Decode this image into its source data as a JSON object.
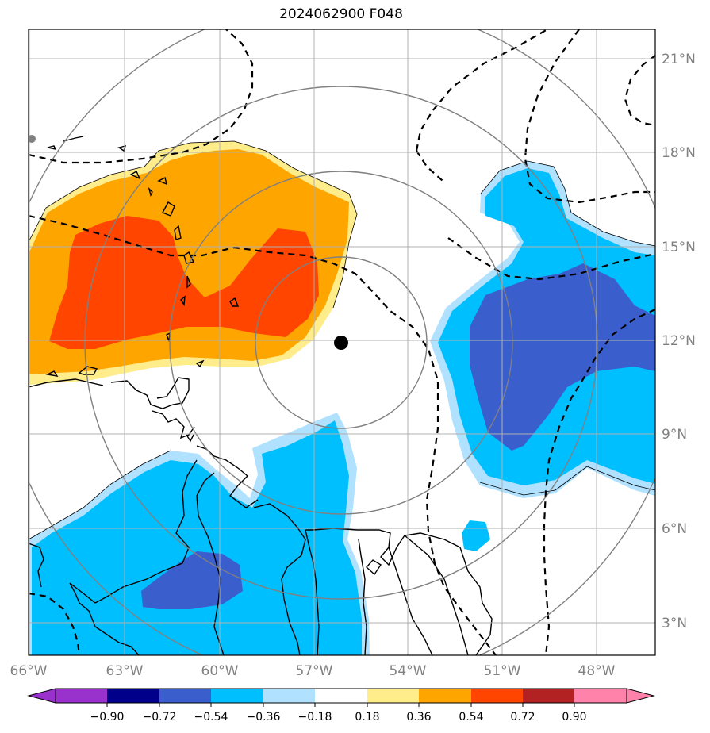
{
  "title": "2024062900 F048",
  "map": {
    "lon_range": [
      -66,
      -46.5
    ],
    "lat_range": [
      2,
      22
    ],
    "storm_center": {
      "lon": -56.0,
      "lat": 12.0
    },
    "range_ring_color": "#808080",
    "dashed_contour_color": "#000000",
    "grid": true
  },
  "axes": {
    "lon_ticks": [
      "66°W",
      "63°W",
      "60°W",
      "57°W",
      "54°W",
      "51°W",
      "48°W"
    ],
    "lat_ticks": [
      "3°N",
      "6°N",
      "9°N",
      "12°N",
      "15°N",
      "18°N",
      "21°N"
    ],
    "tick_color": "#808080"
  },
  "colorbar": {
    "tick_labels": [
      "−0.90",
      "−0.72",
      "−0.54",
      "−0.36",
      "−0.18",
      "0.18",
      "0.36",
      "0.54",
      "0.72",
      "0.90"
    ],
    "colors": [
      "#9932CC",
      "#00008B",
      "#3A5FCD",
      "#00BFFF",
      "#B0E2FF",
      "#FFFFFF",
      "#FFEC8B",
      "#FFA500",
      "#FF4500",
      "#B22222",
      "#FF82AB"
    ]
  }
}
